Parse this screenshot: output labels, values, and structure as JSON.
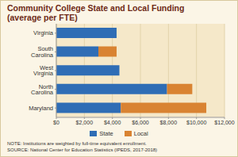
{
  "chart_data": {
    "type": "bar",
    "title": "Community College State and Local Funding",
    "subtitle": "(average per FTE)",
    "orientation": "horizontal",
    "stacked": true,
    "grid": true,
    "legend": "bottom",
    "categories": [
      "Virginia",
      "South Carolina",
      "West Virginia",
      "North Carolina",
      "Maryland"
    ],
    "series": [
      {
        "name": "State",
        "color": "#2f6db5",
        "values": [
          4300,
          3000,
          4500,
          7900,
          4600
        ]
      },
      {
        "name": "Local",
        "color": "#d98332",
        "values": [
          0,
          1300,
          0,
          1800,
          6100
        ]
      }
    ],
    "xlim": [
      0,
      12000
    ],
    "xticks": [
      {
        "value": 0,
        "label": "$0"
      },
      {
        "value": 2000,
        "label": "$2,000"
      },
      {
        "value": 4000,
        "label": "$4,000"
      },
      {
        "value": 6000,
        "label": "$6,000"
      },
      {
        "value": 8000,
        "label": "$8,000"
      },
      {
        "value": 10000,
        "label": "$10,000"
      },
      {
        "value": 12000,
        "label": "$12,000"
      }
    ],
    "annotations": [
      "NOTE: Institutions are weighted by full-time equivalent enrollment.",
      "SOURCE: National Center for Education Statistics (IPEDS, 2017-2018)"
    ]
  }
}
